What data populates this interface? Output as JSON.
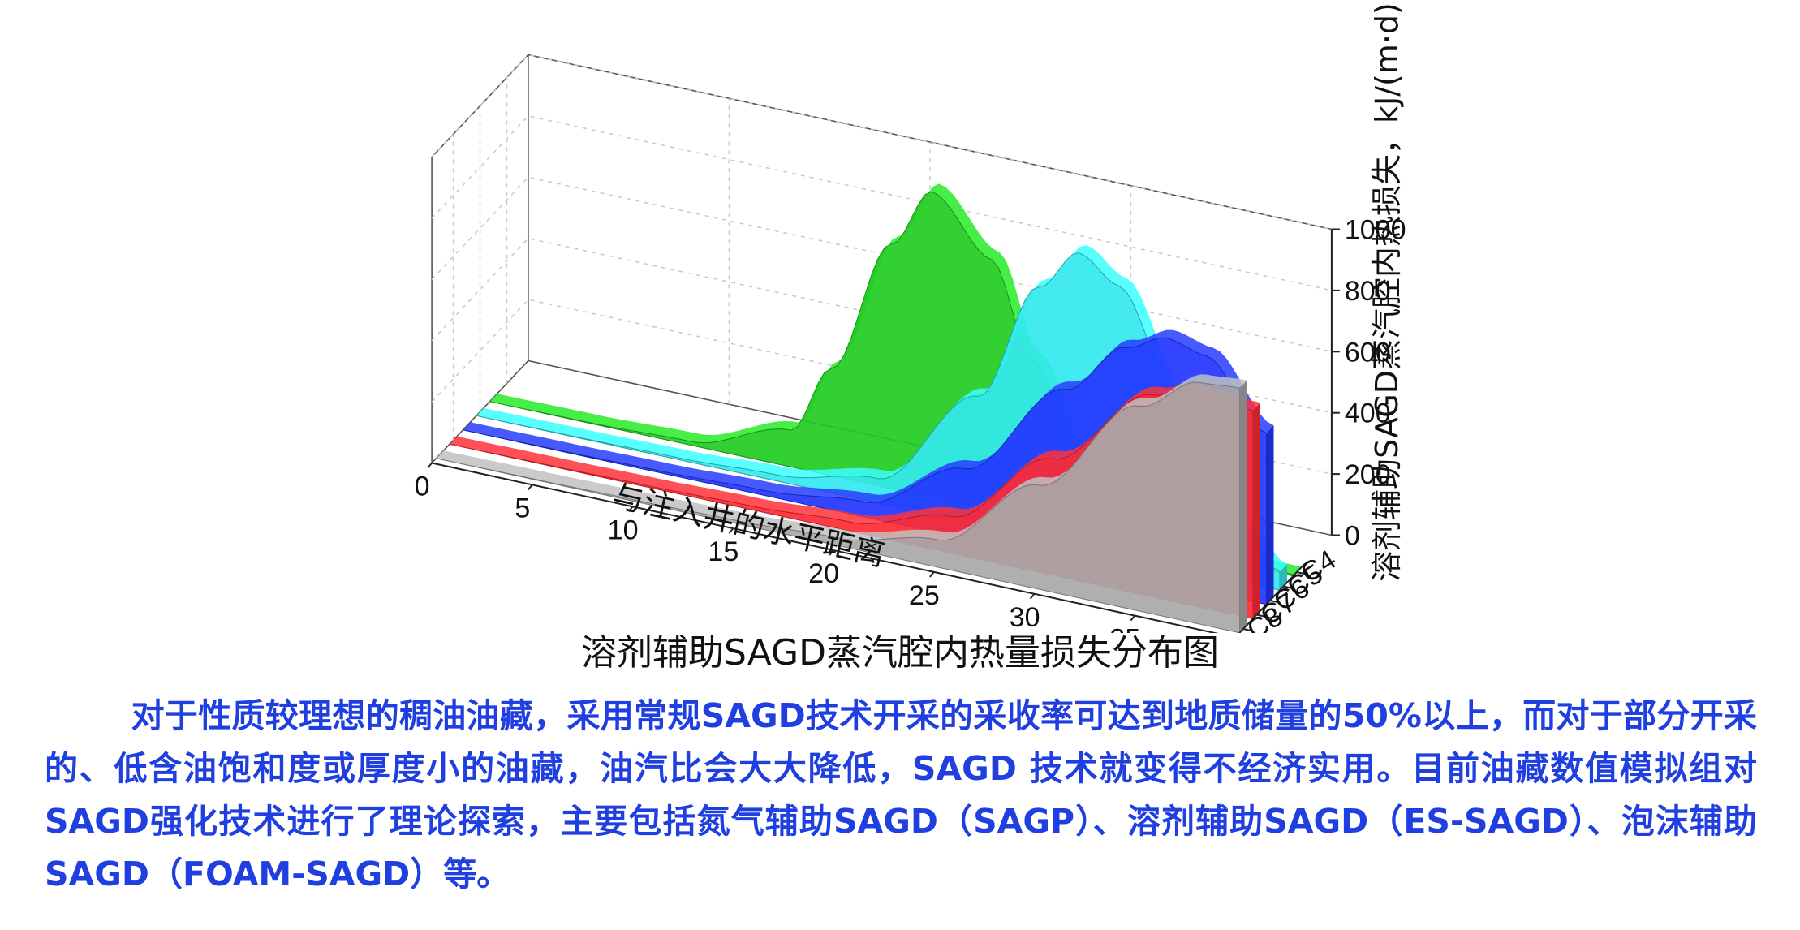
{
  "chart_data": {
    "type": "area",
    "title": "",
    "caption": "溶剂辅助SAGD蒸汽腔内热量损失分布图",
    "xlabel": "与注入井的水平距离",
    "ylabel": "溶剂辅助SAGD蒸汽腔内热损失，kJ/(m·d)",
    "x_ticks": [
      "0",
      "5",
      "10",
      "15",
      "20",
      "25",
      "30",
      "35",
      "40"
    ],
    "y_ticks": [
      "0",
      "200",
      "400",
      "600",
      "800",
      "1000"
    ],
    "xlim": [
      0,
      40
    ],
    "ylim": [
      0,
      1000
    ],
    "grid": true,
    "series_order_back_to_front": [
      "C4",
      "C5",
      "C6",
      "C7",
      "C8"
    ],
    "series": [
      {
        "name": "C4",
        "color": "#22cc22",
        "x": [
          0,
          5,
          10,
          15,
          17,
          20,
          22,
          25,
          27,
          30,
          35,
          40
        ],
        "values": [
          0,
          2,
          12,
          120,
          350,
          800,
          1000,
          820,
          520,
          150,
          20,
          5
        ]
      },
      {
        "name": "C5",
        "color": "#33e8ee",
        "x": [
          0,
          5,
          10,
          15,
          20,
          25,
          28,
          30,
          32,
          35,
          38,
          40
        ],
        "values": [
          0,
          2,
          6,
          20,
          80,
          420,
          820,
          960,
          880,
          540,
          180,
          60
        ]
      },
      {
        "name": "C6",
        "color": "#2235ff",
        "x": [
          0,
          5,
          10,
          15,
          20,
          25,
          30,
          33,
          35,
          37,
          40
        ],
        "values": [
          0,
          2,
          6,
          16,
          50,
          230,
          560,
          740,
          800,
          770,
          560
        ]
      },
      {
        "name": "C7",
        "color": "#ff2b33",
        "x": [
          0,
          5,
          10,
          15,
          20,
          25,
          30,
          35,
          37,
          40
        ],
        "values": [
          0,
          2,
          5,
          12,
          30,
          120,
          380,
          660,
          700,
          680
        ]
      },
      {
        "name": "C8",
        "color": "#a8a8a8",
        "x": [
          0,
          5,
          10,
          15,
          20,
          25,
          30,
          35,
          38,
          40
        ],
        "values": [
          0,
          2,
          5,
          10,
          25,
          90,
          340,
          670,
          790,
          800
        ]
      }
    ]
  },
  "paragraph": "对于性质较理想的稠油油藏，采用常规SAGD技术开采的采收率可达到地质储量的50%以上，而对于部分开采的、低含油饱和度或厚度小的油藏，油汽比会大大降低，SAGD  技术就变得不经济实用。目前油藏数值模拟组对SAGD强化技术进行了理论探索，主要包括氮气辅助SAGD（SAGP）、溶剂辅助SAGD（ES-SAGD）、泡沫辅助SAGD（FOAM-SAGD）等。"
}
